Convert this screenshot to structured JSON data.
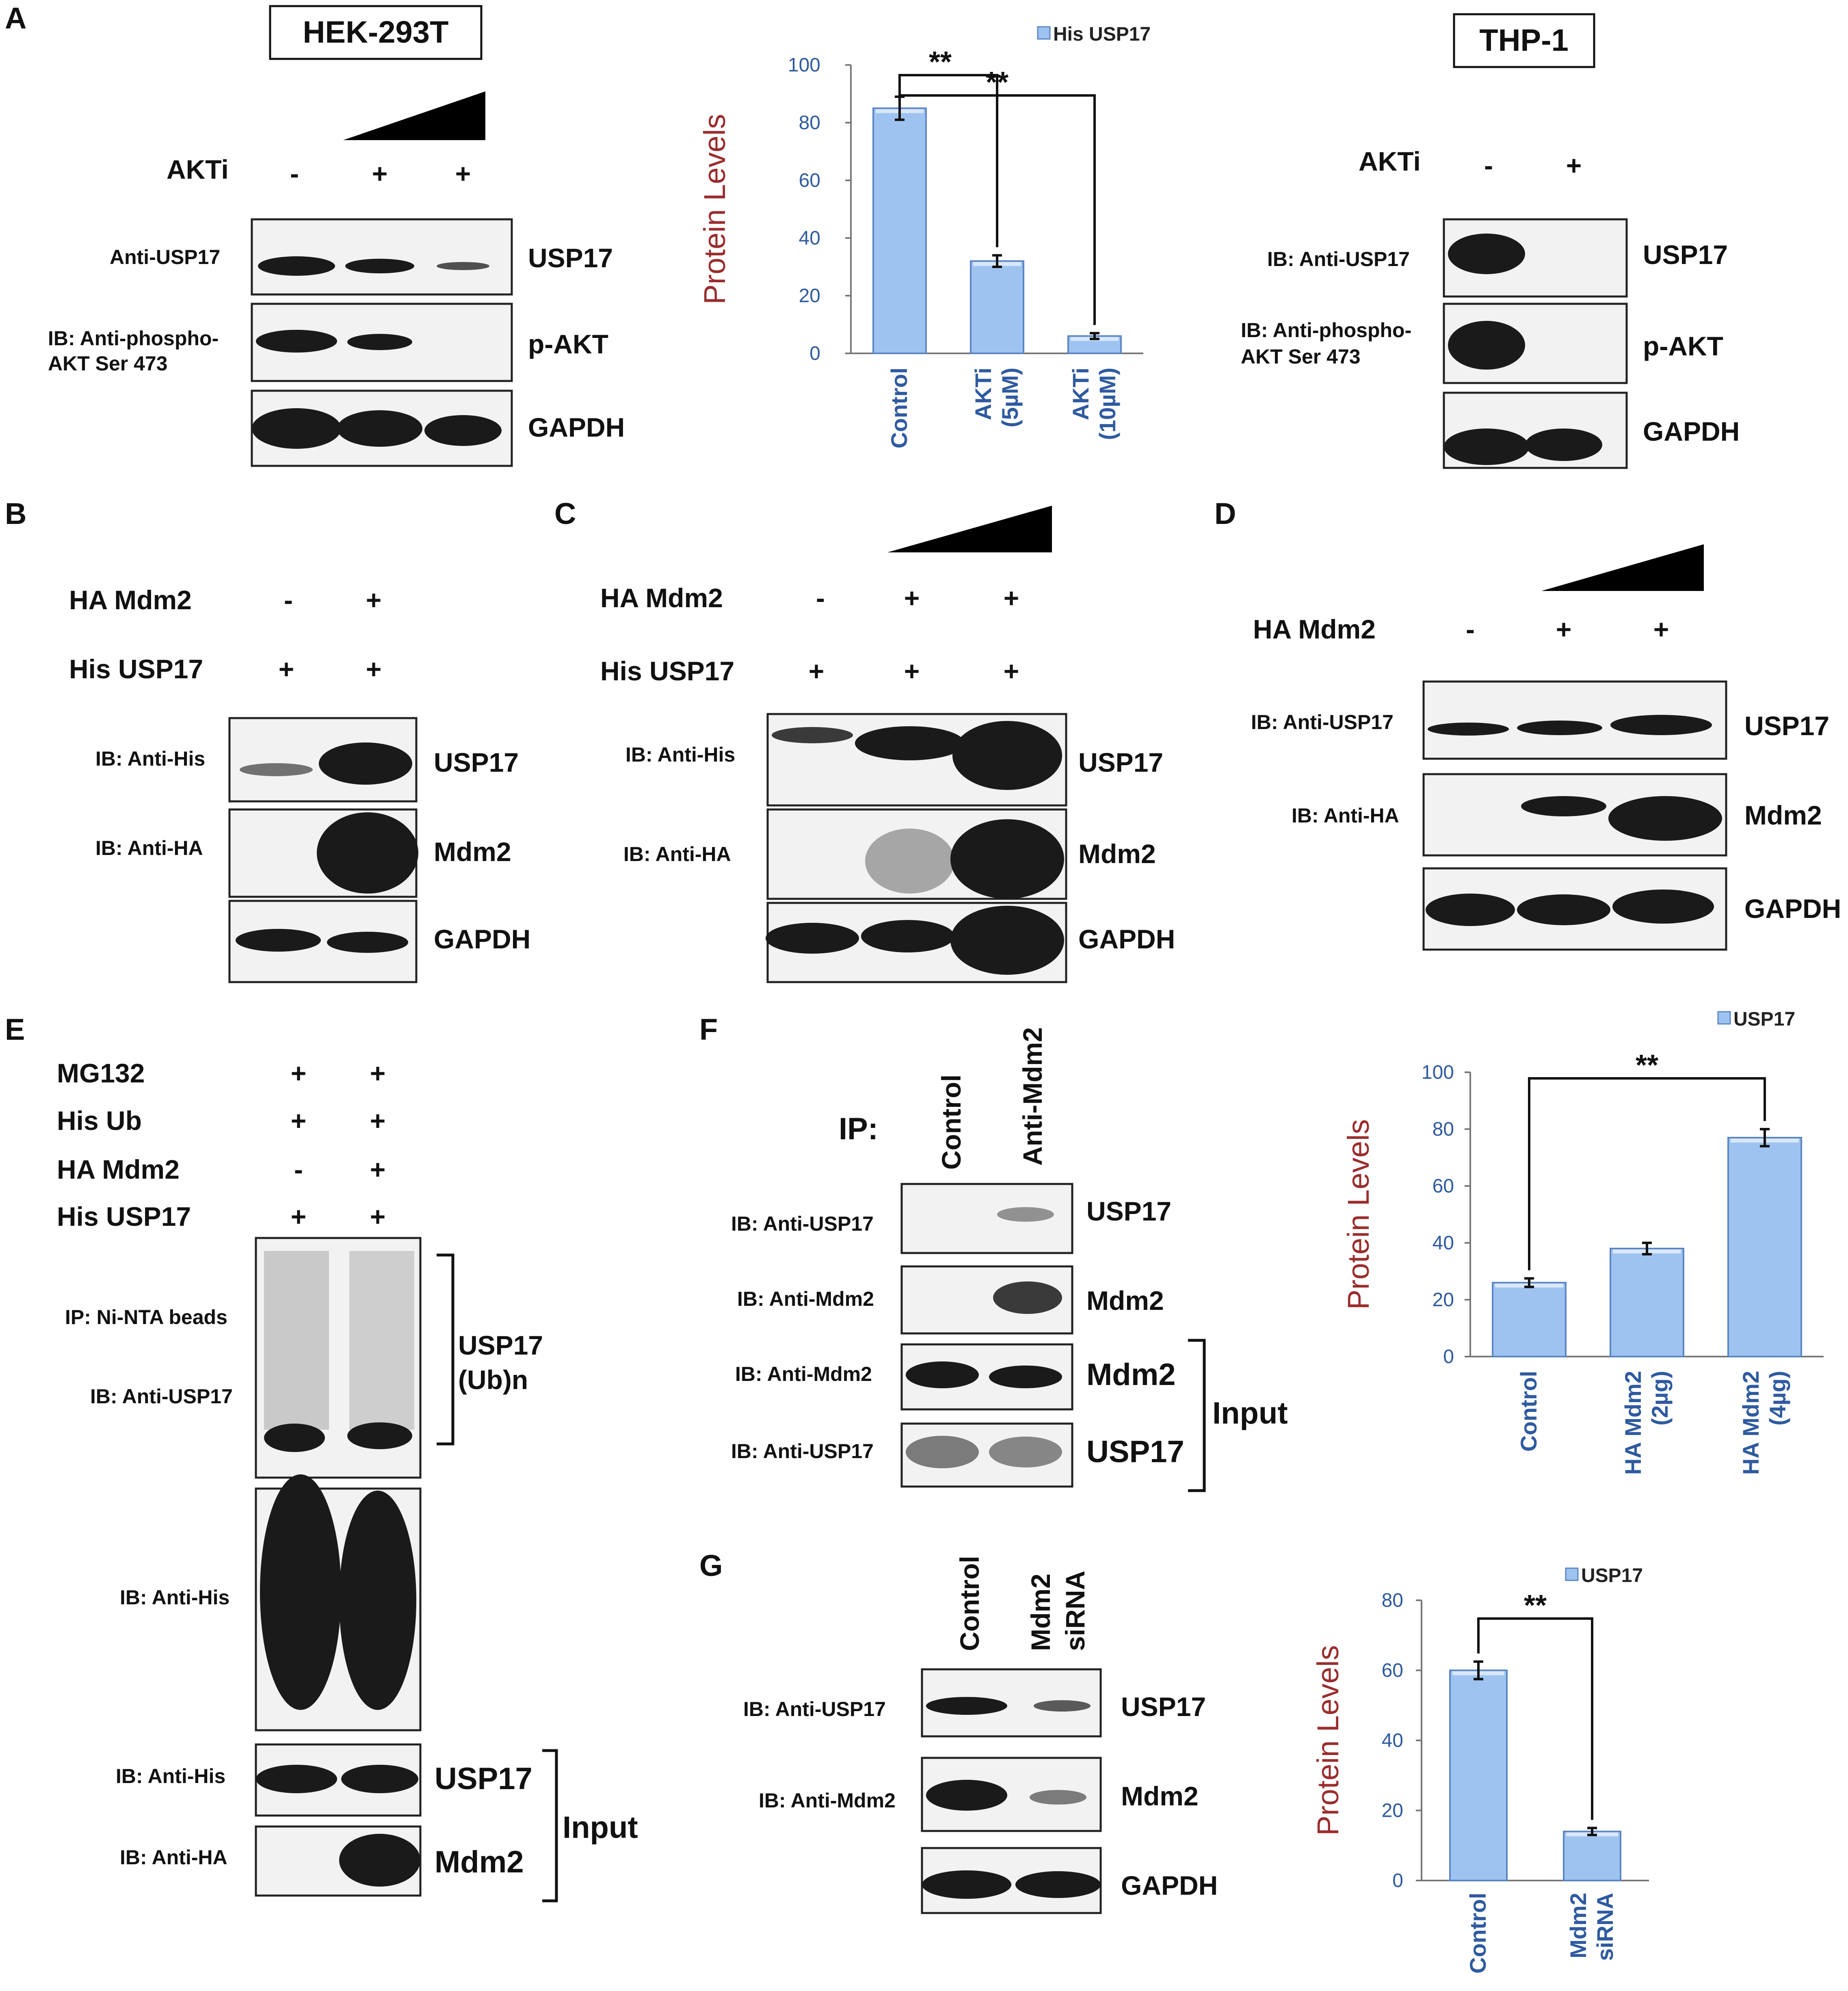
{
  "panel_A": {
    "letter": "A",
    "cell_line_left": "HEK-293T",
    "cell_line_right": "THP-1",
    "left_blot": {
      "treatment_label": "AKTi",
      "lanes": [
        "-",
        "+",
        "+"
      ],
      "antibody_1": "Anti-USP17",
      "antibody_2": "IB:  Anti-phospho-",
      "antibody_2b": "AKT Ser 473",
      "bands": [
        "USP17",
        "p-AKT",
        "GAPDH"
      ]
    },
    "right_blot": {
      "treatment_label": "AKTi",
      "lanes": [
        "-",
        "+"
      ],
      "antibody_1": "IB: Anti-USP17",
      "antibody_2": "IB:  Anti-phospho-",
      "antibody_2b": "AKT Ser 473",
      "bands": [
        "USP17",
        "p-AKT",
        "GAPDH"
      ]
    }
  },
  "panel_B": {
    "letter": "B",
    "rows": [
      {
        "label": "HA Mdm2",
        "lanes": [
          "-",
          "+"
        ]
      },
      {
        "label": "His USP17",
        "lanes": [
          "+",
          "+"
        ]
      }
    ],
    "antibodies": [
      "IB: Anti-His",
      "IB: Anti-HA"
    ],
    "bands": [
      "USP17",
      "Mdm2",
      "GAPDH"
    ]
  },
  "panel_C": {
    "letter": "C",
    "rows": [
      {
        "label": "HA Mdm2",
        "lanes": [
          "-",
          "+",
          "+"
        ]
      },
      {
        "label": "His USP17",
        "lanes": [
          "+",
          "+",
          "+"
        ]
      }
    ],
    "antibodies": [
      "IB: Anti-His",
      "IB: Anti-HA"
    ],
    "bands": [
      "USP17",
      "Mdm2",
      "GAPDH"
    ]
  },
  "panel_D": {
    "letter": "D",
    "rows": [
      {
        "label": "HA Mdm2",
        "lanes": [
          "-",
          "+",
          "+"
        ]
      }
    ],
    "antibodies": [
      "IB: Anti-USP17",
      "IB: Anti-HA"
    ],
    "bands": [
      "USP17",
      "Mdm2",
      "GAPDH"
    ]
  },
  "panel_E": {
    "letter": "E",
    "rows": [
      {
        "label": "MG132",
        "lanes": [
          "+",
          "+"
        ]
      },
      {
        "label": "His Ub",
        "lanes": [
          "+",
          "+"
        ]
      },
      {
        "label": "HA Mdm2",
        "lanes": [
          "-",
          "+"
        ]
      },
      {
        "label": "His USP17",
        "lanes": [
          "+",
          "+"
        ]
      }
    ],
    "ip_label": "IP: Ni-NTA beads",
    "ib_label": "IB: Anti-USP17",
    "ub_label_1": "USP17",
    "ub_label_2": "(Ub)n",
    "his_label": "IB: Anti-His",
    "input_his": "IB: Anti-His",
    "input_ha": "IB: Anti-HA",
    "input_bands": [
      "USP17",
      "Mdm2"
    ],
    "input_label": "Input"
  },
  "panel_F": {
    "letter": "F",
    "ip_label": "IP:",
    "lanes": [
      "Control",
      "Anti-Mdm2"
    ],
    "antibodies": [
      "IB: Anti-USP17",
      "IB: Anti-Mdm2",
      "IB: Anti-Mdm2",
      "IB: Anti-USP17"
    ],
    "bands": [
      "USP17",
      "Mdm2",
      "Mdm2",
      "USP17"
    ],
    "input_label": "Input"
  },
  "panel_G": {
    "letter": "G",
    "lanes": [
      "Control",
      "Mdm2",
      "siRNA"
    ],
    "antibodies": [
      "IB: Anti-USP17",
      "IB: Anti-Mdm2"
    ],
    "bands": [
      "USP17",
      "Mdm2",
      "GAPDH"
    ]
  },
  "chart_data": [
    {
      "type": "bar",
      "panel": "A",
      "categories": [
        "Control",
        "AKTi (5µM)",
        "AKTi (10µM)"
      ],
      "category_lines": [
        [
          "Control"
        ],
        [
          "AKTi",
          "(5µM)"
        ],
        [
          "AKTi",
          "(10µM)"
        ]
      ],
      "series": [
        {
          "name": "His USP17",
          "values": [
            85,
            32,
            6
          ],
          "errors": [
            4,
            2,
            1
          ]
        }
      ],
      "ylabel": "Protein Levels",
      "ylim": [
        0,
        100
      ],
      "yticks": [
        0,
        20,
        40,
        60,
        80,
        100
      ],
      "significance": [
        {
          "from": 0,
          "to": 1,
          "label": "**"
        },
        {
          "from": 0,
          "to": 2,
          "label": "**"
        }
      ],
      "legend_position": "top-right",
      "color": "#9ec3f0"
    },
    {
      "type": "bar",
      "panel": "F",
      "categories": [
        "Control",
        "HA Mdm2 (2µg)",
        "HA Mdm2 (4µg)"
      ],
      "category_lines": [
        [
          "Control"
        ],
        [
          "HA Mdm2",
          "(2µg)"
        ],
        [
          "HA Mdm2",
          "(4µg)"
        ]
      ],
      "series": [
        {
          "name": "USP17",
          "values": [
            26,
            38,
            77
          ],
          "errors": [
            1.5,
            2,
            3
          ]
        }
      ],
      "ylabel": "Protein Levels",
      "ylim": [
        0,
        100
      ],
      "yticks": [
        0,
        20,
        40,
        60,
        80,
        100
      ],
      "significance": [
        {
          "from": 0,
          "to": 2,
          "label": "**"
        }
      ],
      "legend_position": "top-right",
      "color": "#9ec3f0"
    },
    {
      "type": "bar",
      "panel": "G",
      "categories": [
        "Control",
        "Mdm2 siRNA"
      ],
      "category_lines": [
        [
          "Control"
        ],
        [
          "Mdm2",
          "siRNA"
        ]
      ],
      "series": [
        {
          "name": "USP17",
          "values": [
            60,
            14
          ],
          "errors": [
            2.5,
            1
          ]
        }
      ],
      "ylabel": "Protein Levels",
      "ylim": [
        0,
        80
      ],
      "yticks": [
        0,
        20,
        40,
        60,
        80
      ],
      "significance": [
        {
          "from": 0,
          "to": 1,
          "label": "**"
        }
      ],
      "legend_position": "top-right",
      "color": "#9ec3f0"
    }
  ]
}
